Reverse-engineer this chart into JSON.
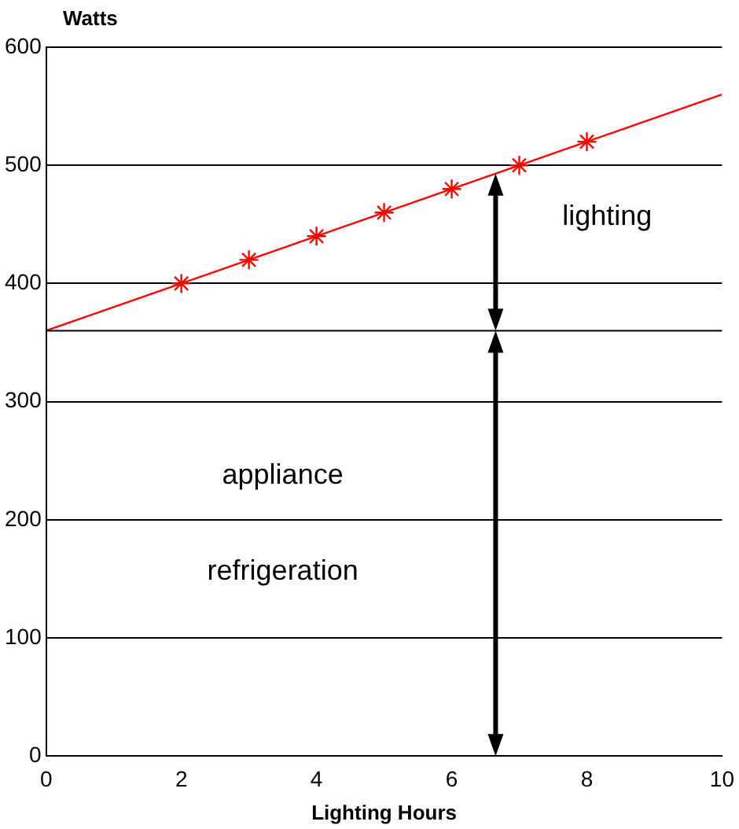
{
  "chart_data": {
    "type": "scatter",
    "xlabel": "Lighting Hours",
    "ylabel": "Watts",
    "xlim": [
      0,
      10
    ],
    "xticks": [
      0,
      2,
      4,
      6,
      8,
      10
    ],
    "ylim": [
      0,
      600
    ],
    "yticks": [
      0,
      100,
      200,
      300,
      400,
      500,
      600
    ],
    "grid": "y",
    "legend": false,
    "marker": "cross",
    "series": [
      {
        "type": "line",
        "color": "#ff0000",
        "x": [
          0,
          10
        ],
        "values": [
          360,
          560
        ],
        "marker": "none"
      },
      {
        "color": "#ff0000",
        "x": [
          2,
          3,
          4,
          5,
          6,
          7,
          8
        ],
        "values": [
          400,
          420,
          440,
          460,
          480,
          500,
          520
        ]
      }
    ],
    "ref_lines": [
      {
        "axis": "y",
        "value": 360,
        "color": "#000000"
      }
    ],
    "annotations": [
      "lighting",
      "appliance",
      "refrigeration"
    ]
  }
}
